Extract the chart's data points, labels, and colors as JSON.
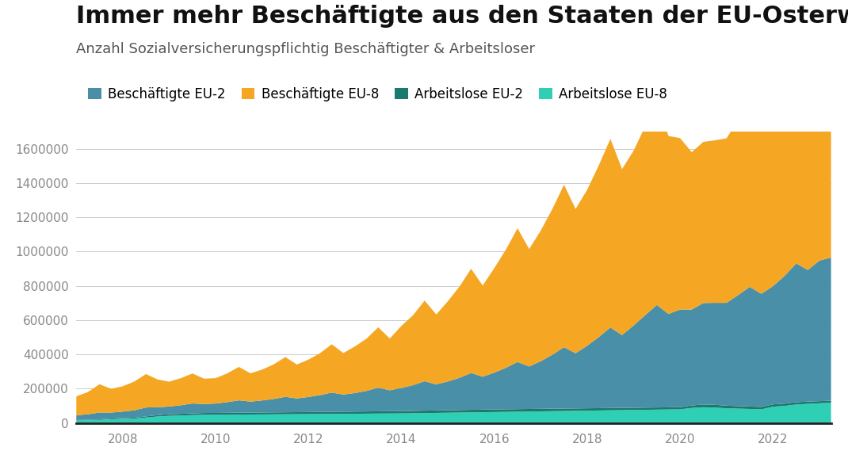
{
  "title": "Immer mehr Beschäftigte aus den Staaten der EU-Osterweiterung",
  "subtitle": "Anzahl Sozialversicherungspflichtig Beschäftigter & Arbeitsloser",
  "legend_labels": [
    "Beschäftigte EU-2",
    "Beschäftigte EU-8",
    "Arbeitslose EU-2",
    "Arbeitslose EU-8"
  ],
  "colors": {
    "besch_eu2": "#4a8fa8",
    "besch_eu8": "#f5a623",
    "arb_eu2": "#1a7a6e",
    "arb_eu8": "#2ecfb5"
  },
  "background_color": "#ffffff",
  "title_fontsize": 22,
  "subtitle_fontsize": 13,
  "legend_fontsize": 12,
  "years": [
    2007.0,
    2007.25,
    2007.5,
    2007.75,
    2008.0,
    2008.25,
    2008.5,
    2008.75,
    2009.0,
    2009.25,
    2009.5,
    2009.75,
    2010.0,
    2010.25,
    2010.5,
    2010.75,
    2011.0,
    2011.25,
    2011.5,
    2011.75,
    2012.0,
    2012.25,
    2012.5,
    2012.75,
    2013.0,
    2013.25,
    2013.5,
    2013.75,
    2014.0,
    2014.25,
    2014.5,
    2014.75,
    2015.0,
    2015.25,
    2015.5,
    2015.75,
    2016.0,
    2016.25,
    2016.5,
    2016.75,
    2017.0,
    2017.25,
    2017.5,
    2017.75,
    2018.0,
    2018.25,
    2018.5,
    2018.75,
    2019.0,
    2019.25,
    2019.5,
    2019.75,
    2020.0,
    2020.25,
    2020.5,
    2020.75,
    2021.0,
    2021.25,
    2021.5,
    2021.75,
    2022.0,
    2022.25,
    2022.5,
    2022.75,
    2023.0,
    2023.25
  ],
  "besch_eu2": [
    28000,
    32000,
    40000,
    35000,
    38000,
    43000,
    52000,
    46000,
    45000,
    50000,
    58000,
    52000,
    55000,
    62000,
    72000,
    64000,
    70000,
    78000,
    90000,
    80000,
    88000,
    98000,
    112000,
    100000,
    108000,
    120000,
    138000,
    122000,
    135000,
    150000,
    172000,
    152000,
    168000,
    188000,
    215000,
    192000,
    215000,
    242000,
    275000,
    248000,
    278000,
    315000,
    358000,
    322000,
    365000,
    415000,
    470000,
    425000,
    480000,
    540000,
    598000,
    545000,
    570000,
    560000,
    592000,
    595000,
    600000,
    648000,
    698000,
    660000,
    690000,
    745000,
    810000,
    768000,
    820000,
    835000
  ],
  "besch_eu8": [
    110000,
    130000,
    165000,
    138000,
    148000,
    168000,
    195000,
    162000,
    145000,
    158000,
    175000,
    148000,
    148000,
    168000,
    195000,
    165000,
    180000,
    202000,
    232000,
    198000,
    218000,
    245000,
    282000,
    242000,
    272000,
    305000,
    352000,
    302000,
    362000,
    408000,
    470000,
    408000,
    468000,
    532000,
    608000,
    532000,
    610000,
    690000,
    780000,
    685000,
    762000,
    850000,
    948000,
    842000,
    910000,
    1002000,
    1100000,
    968000,
    1020000,
    1102000,
    1182000,
    1038000,
    1000000,
    918000,
    940000,
    948000,
    960000,
    1022000,
    1088000,
    1008000,
    1060000,
    1132000,
    1202000,
    1118000,
    780000,
    815000
  ],
  "arb_eu2": [
    2500,
    2800,
    3200,
    4000,
    4500,
    5000,
    6500,
    8000,
    9000,
    9500,
    10000,
    10500,
    10800,
    11000,
    11200,
    11400,
    11500,
    11600,
    11700,
    11800,
    12000,
    12200,
    12400,
    12600,
    12800,
    13000,
    13200,
    13400,
    13600,
    13800,
    14000,
    14200,
    14400,
    14600,
    14800,
    15000,
    15000,
    15000,
    15000,
    14800,
    14600,
    14400,
    14200,
    14000,
    13800,
    13600,
    13400,
    13200,
    13000,
    12800,
    12600,
    12400,
    12200,
    14000,
    16000,
    16000,
    15000,
    14500,
    14000,
    13800,
    13500,
    13200,
    13000,
    12800,
    12500,
    12200
  ],
  "arb_eu8": [
    15000,
    16000,
    18000,
    22000,
    24000,
    26000,
    32000,
    38000,
    42000,
    44000,
    46000,
    48000,
    48000,
    48500,
    49000,
    49500,
    50000,
    50500,
    51000,
    51500,
    52000,
    52500,
    53000,
    53500,
    54000,
    54500,
    55000,
    55500,
    56000,
    57000,
    58000,
    59000,
    60000,
    61000,
    62000,
    63000,
    64000,
    65000,
    66000,
    67000,
    68000,
    69000,
    70000,
    71000,
    72000,
    73000,
    74000,
    75000,
    76000,
    77000,
    78000,
    79000,
    80000,
    88000,
    92000,
    90000,
    86000,
    84000,
    82000,
    80000,
    95000,
    100000,
    108000,
    112000,
    115000,
    118000
  ],
  "ylim": [
    0,
    1700000
  ],
  "yticks": [
    0,
    200000,
    400000,
    600000,
    800000,
    1000000,
    1200000,
    1400000,
    1600000
  ],
  "xtick_years": [
    2008,
    2010,
    2012,
    2014,
    2016,
    2018,
    2020,
    2022
  ]
}
